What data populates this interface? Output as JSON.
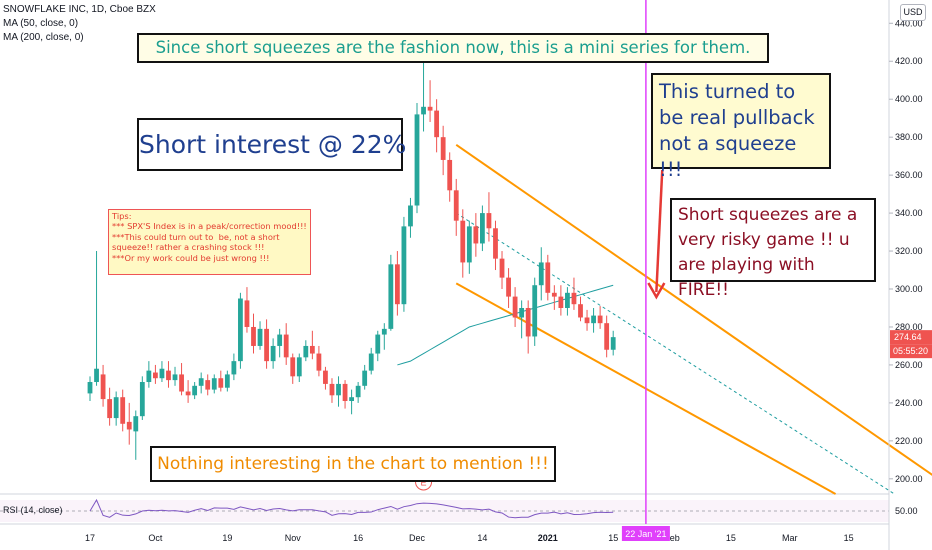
{
  "header": {
    "symbol_line": "SNOWFLAKE INC, 1D, Cboe BZX",
    "ma50_label": "MA (50, close, 0)",
    "ma200_label": "MA (200, close, 0)",
    "currency": "USD"
  },
  "annotations": {
    "title": "Since  short squeezes are the fashion now, this is a mini series for them.",
    "short_interest": "Short interest @ 22%",
    "tips": "Tips:\n*** SPX'S Index is in a peak/correction mood!!!\n***This could turn out to  be, not a short\nsqueeze!! rather a crashing stock !!!\n***Or my work could be just wrong !!!",
    "pullback": "This turned to be real pullback not a squeeze !!!",
    "risky": "Short squeezes are a very risky  game !! u are playing with FIRE!!",
    "nothing": "Nothing interesting in the chart to mention !!!",
    "earnings_marker": "E"
  },
  "rsi": {
    "label": "RSI (14, close)",
    "level_label": "50.00"
  },
  "price_tags": {
    "last_price": "274.64",
    "countdown": "05:55:20",
    "crosshair_date": "22 Jan '21"
  },
  "colors": {
    "up": "#26a69a",
    "down": "#ef5350",
    "channel": "#ff9800",
    "ma50": "#1f9ea0",
    "crosshair": "#e040fb",
    "rsi": "#7e57c2"
  },
  "chart_data": {
    "type": "candlestick",
    "title": "SNOWFLAKE INC, 1D, Cboe BZX",
    "y_axis": {
      "ticks": [
        200,
        220,
        240,
        260,
        280,
        300,
        320,
        340,
        360,
        380,
        400,
        420,
        440
      ],
      "tick_labels": [
        "200.00",
        "220.00",
        "240.00",
        "260.00",
        "280.00",
        "300.00",
        "320.00",
        "340.00",
        "360.00",
        "380.00",
        "400.00",
        "420.00",
        "440.00"
      ],
      "range": [
        192,
        447
      ]
    },
    "x_axis": {
      "tick_labels": [
        "17",
        "Oct",
        "19",
        "Nov",
        "16",
        "Dec",
        "14",
        "2021",
        "15",
        "Feb",
        "15",
        "Mar",
        "15"
      ]
    },
    "candles": [
      [
        245,
        254,
        241,
        251
      ],
      [
        251,
        320,
        249,
        258
      ],
      [
        255,
        260,
        238,
        242
      ],
      [
        242,
        248,
        228,
        232
      ],
      [
        232,
        246,
        228,
        243
      ],
      [
        243,
        247,
        225,
        229
      ],
      [
        230,
        240,
        218,
        226
      ],
      [
        225,
        236,
        210,
        233
      ],
      [
        233,
        254,
        231,
        251
      ],
      [
        251,
        262,
        248,
        257
      ],
      [
        256,
        260,
        250,
        253
      ],
      [
        253,
        262,
        251,
        258
      ],
      [
        257,
        262,
        248,
        252
      ],
      [
        252,
        259,
        249,
        255
      ],
      [
        255,
        261,
        244,
        246
      ],
      [
        246,
        252,
        240,
        244
      ],
      [
        244,
        251,
        242,
        249
      ],
      [
        249,
        256,
        245,
        253
      ],
      [
        252,
        255,
        244,
        247
      ],
      [
        247,
        255,
        245,
        253
      ],
      [
        253,
        257,
        246,
        248
      ],
      [
        248,
        257,
        246,
        255
      ],
      [
        255,
        266,
        252,
        262
      ],
      [
        262,
        298,
        258,
        295
      ],
      [
        294,
        301,
        277,
        280
      ],
      [
        280,
        287,
        266,
        270
      ],
      [
        270,
        283,
        268,
        279
      ],
      [
        279,
        284,
        258,
        262
      ],
      [
        262,
        274,
        258,
        270
      ],
      [
        270,
        279,
        264,
        276
      ],
      [
        276,
        282,
        260,
        264
      ],
      [
        264,
        266,
        250,
        254
      ],
      [
        254,
        266,
        251,
        264
      ],
      [
        264,
        273,
        262,
        270
      ],
      [
        270,
        278,
        263,
        266
      ],
      [
        266,
        270,
        254,
        257
      ],
      [
        257,
        259,
        247,
        250
      ],
      [
        250,
        253,
        240,
        244
      ],
      [
        244,
        254,
        238,
        250
      ],
      [
        250,
        252,
        237,
        241
      ],
      [
        241,
        247,
        234,
        243
      ],
      [
        243,
        251,
        240,
        249
      ],
      [
        249,
        260,
        247,
        257
      ],
      [
        257,
        269,
        255,
        266
      ],
      [
        266,
        278,
        262,
        276
      ],
      [
        276,
        282,
        268,
        279
      ],
      [
        279,
        318,
        278,
        313
      ],
      [
        313,
        320,
        286,
        292
      ],
      [
        292,
        338,
        288,
        333
      ],
      [
        333,
        348,
        327,
        344
      ],
      [
        344,
        398,
        340,
        392
      ],
      [
        392,
        428,
        383,
        396
      ],
      [
        396,
        410,
        388,
        394
      ],
      [
        394,
        400,
        372,
        380
      ],
      [
        380,
        386,
        360,
        368
      ],
      [
        368,
        372,
        346,
        352
      ],
      [
        352,
        358,
        328,
        336
      ],
      [
        336,
        342,
        306,
        314
      ],
      [
        314,
        336,
        308,
        333
      ],
      [
        333,
        340,
        317,
        324
      ],
      [
        324,
        344,
        320,
        340
      ],
      [
        340,
        351,
        325,
        332
      ],
      [
        332,
        336,
        310,
        316
      ],
      [
        316,
        320,
        300,
        306
      ],
      [
        306,
        311,
        290,
        296
      ],
      [
        296,
        301,
        280,
        285
      ],
      [
        285,
        294,
        274,
        290
      ],
      [
        290,
        294,
        266,
        275
      ],
      [
        275,
        306,
        270,
        302
      ],
      [
        302,
        322,
        294,
        314
      ],
      [
        314,
        318,
        294,
        298
      ],
      [
        298,
        302,
        289,
        296
      ],
      [
        296,
        302,
        286,
        290
      ],
      [
        290,
        301,
        286,
        298
      ],
      [
        298,
        306,
        289,
        292
      ],
      [
        292,
        296,
        283,
        285
      ],
      [
        285,
        289,
        278,
        282
      ],
      [
        282,
        290,
        277,
        286
      ],
      [
        286,
        291,
        279,
        282
      ],
      [
        282,
        286,
        264,
        268
      ],
      [
        268,
        278,
        265,
        274.64
      ]
    ],
    "series": [
      {
        "name": "MA (50, close, 0)",
        "x_start_index": 47,
        "values": [
          260,
          261,
          262,
          264,
          266,
          268,
          270,
          272,
          274,
          276,
          278,
          280,
          281,
          282,
          283,
          284,
          285,
          286,
          287,
          288,
          289,
          290,
          291,
          292,
          293,
          294,
          295,
          296,
          297,
          298,
          299,
          300,
          301,
          302
        ]
      }
    ],
    "channel": {
      "upper": {
        "from": [
          56,
          376
        ],
        "to": [
          133,
          192
        ]
      },
      "lower": {
        "from": [
          56,
          303
        ],
        "to": [
          114,
          192
        ]
      },
      "mid_dashed": {
        "from": [
          56,
          340
        ],
        "to": [
          123,
          192
        ]
      }
    },
    "crosshair_index": 85,
    "rsi": {
      "level": 50
    }
  }
}
